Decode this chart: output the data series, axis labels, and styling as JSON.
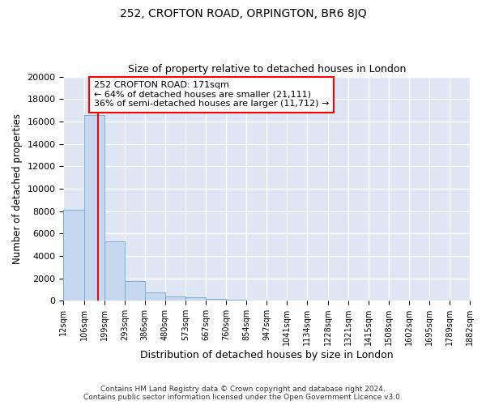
{
  "title": "252, CROFTON ROAD, ORPINGTON, BR6 8JQ",
  "subtitle": "Size of property relative to detached houses in London",
  "xlabel": "Distribution of detached houses by size in London",
  "ylabel": "Number of detached properties",
  "bin_edges": [
    12,
    106,
    199,
    293,
    386,
    480,
    573,
    667,
    760,
    854,
    947,
    1041,
    1134,
    1228,
    1321,
    1415,
    1508,
    1602,
    1695,
    1789,
    1882
  ],
  "bar_heights": [
    8100,
    16600,
    5300,
    1750,
    750,
    350,
    280,
    150,
    100,
    0,
    0,
    0,
    0,
    0,
    0,
    0,
    0,
    0,
    0,
    0
  ],
  "bar_color": "#c5d8f0",
  "bar_edge_color": "#7aadd4",
  "property_sqm": 171,
  "property_line_color": "red",
  "annotation_text": "252 CROFTON ROAD: 171sqm\n← 64% of detached houses are smaller (21,111)\n36% of semi-detached houses are larger (11,712) →",
  "annotation_box_color": "white",
  "annotation_box_edge_color": "red",
  "ylim": [
    0,
    20000
  ],
  "yticks": [
    0,
    2000,
    4000,
    6000,
    8000,
    10000,
    12000,
    14000,
    16000,
    18000,
    20000
  ],
  "background_color": "#dde6f2",
  "grid_color": "white",
  "footer_line1": "Contains HM Land Registry data © Crown copyright and database right 2024.",
  "footer_line2": "Contains public sector information licensed under the Open Government Licence v3.0."
}
